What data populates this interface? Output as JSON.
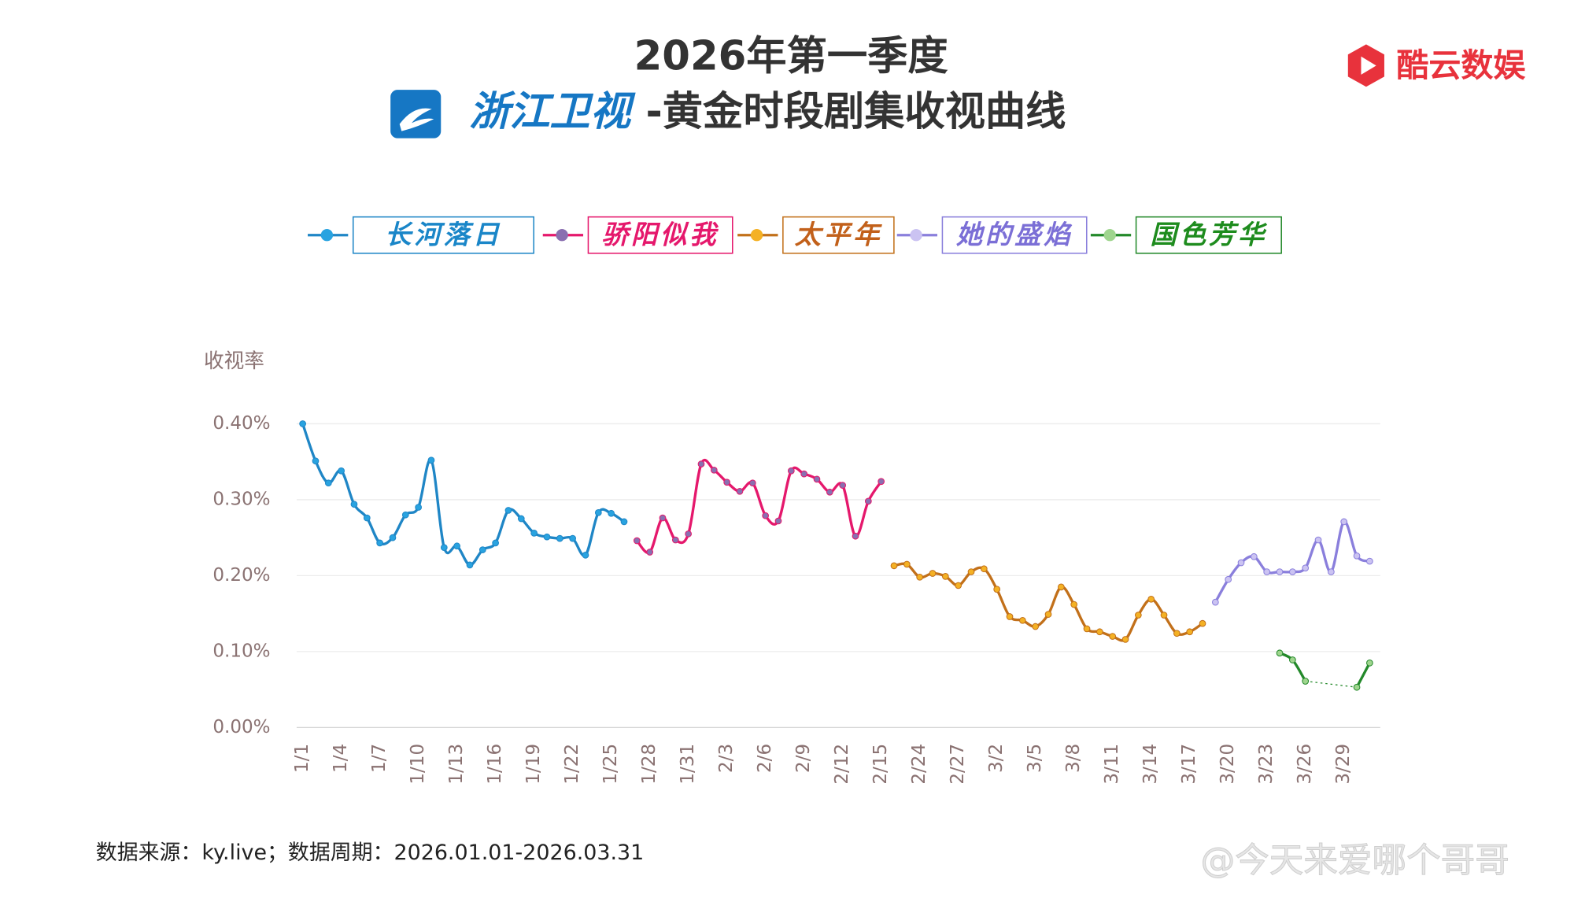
{
  "chart_data": {
    "type": "line",
    "title": "2026年第一季度",
    "channel": "浙江卫视",
    "subtitle": "-黄金时段剧集收视曲线",
    "y_label": "收视率",
    "categories": [
      "1/1",
      null,
      null,
      "1/4",
      null,
      null,
      "1/7",
      null,
      null,
      "1/10",
      null,
      null,
      "1/13",
      null,
      null,
      "1/16",
      null,
      null,
      "1/19",
      null,
      null,
      "1/22",
      null,
      null,
      "1/25",
      null,
      null,
      "1/28",
      null,
      null,
      "1/31",
      null,
      null,
      "2/3",
      null,
      null,
      "2/6",
      null,
      null,
      "2/9",
      null,
      null,
      "2/12",
      null,
      null,
      "2/15",
      null,
      null,
      "2/24",
      null,
      null,
      "2/27",
      null,
      null,
      "3/2",
      null,
      null,
      "3/5",
      null,
      null,
      "3/8",
      null,
      null,
      "3/11",
      null,
      null,
      "3/14",
      null,
      null,
      "3/17",
      null,
      null,
      "3/20",
      null,
      null,
      "3/23",
      null,
      null,
      "3/26",
      null,
      null,
      "3/29",
      null,
      null
    ],
    "ylim": [
      0,
      0.4
    ],
    "yticks": [
      {
        "value": 0,
        "label": "0.00%"
      },
      {
        "value": 0.1,
        "label": "0.10%"
      },
      {
        "value": 0.2,
        "label": "0.20%"
      },
      {
        "value": 0.3,
        "label": "0.30%"
      },
      {
        "value": 0.4,
        "label": "0.40%"
      }
    ],
    "grid": true,
    "series": [
      {
        "name": "长河落日",
        "color": "#1f86c6",
        "marker_color": "#29a3e0",
        "text_color": "#1a86c8",
        "values": [
          0.4,
          0.351,
          0.322,
          0.338,
          0.294,
          0.276,
          0.243,
          0.25,
          0.28,
          0.29,
          0.352,
          0.237,
          0.239,
          0.214,
          0.234,
          0.243,
          0.286,
          0.275,
          0.256,
          0.251,
          0.249,
          0.249,
          0.227,
          0.283,
          0.282,
          0.271,
          null,
          null,
          null,
          null,
          null,
          null,
          null,
          null,
          null,
          null,
          null,
          null,
          null,
          null,
          null,
          null,
          null,
          null,
          null,
          null,
          null,
          null,
          null,
          null,
          null,
          null,
          null,
          null,
          null,
          null,
          null,
          null,
          null,
          null,
          null,
          null,
          null,
          null,
          null,
          null,
          null,
          null,
          null,
          null,
          null,
          null,
          null,
          null,
          null,
          null,
          null,
          null,
          null,
          null,
          null,
          null,
          null,
          null
        ]
      },
      {
        "name": "骄阳似我",
        "color": "#e5186c",
        "marker_color": "#8a6fb0",
        "text_color": "#e5186c",
        "values": [
          null,
          null,
          null,
          null,
          null,
          null,
          null,
          null,
          null,
          null,
          null,
          null,
          null,
          null,
          null,
          null,
          null,
          null,
          null,
          null,
          null,
          null,
          null,
          null,
          null,
          null,
          0.246,
          0.231,
          0.276,
          0.247,
          0.255,
          0.347,
          0.339,
          0.323,
          0.311,
          0.322,
          0.279,
          0.272,
          0.338,
          0.334,
          0.327,
          0.31,
          0.319,
          0.252,
          0.298,
          0.324,
          null,
          null,
          null,
          null,
          null,
          null,
          null,
          null,
          null,
          null,
          null,
          null,
          null,
          null,
          null,
          null,
          null,
          null,
          null,
          null,
          null,
          null,
          null,
          null,
          null,
          null,
          null,
          null,
          null,
          null,
          null,
          null,
          null,
          null,
          null,
          null,
          null,
          null
        ]
      },
      {
        "name": "太平年",
        "color": "#c2701a",
        "marker_color": "#f4b124",
        "text_color": "#c2601a",
        "values": [
          null,
          null,
          null,
          null,
          null,
          null,
          null,
          null,
          null,
          null,
          null,
          null,
          null,
          null,
          null,
          null,
          null,
          null,
          null,
          null,
          null,
          null,
          null,
          null,
          null,
          null,
          null,
          null,
          null,
          null,
          null,
          null,
          null,
          null,
          null,
          null,
          null,
          null,
          null,
          null,
          null,
          null,
          null,
          null,
          null,
          null,
          0.213,
          0.215,
          0.198,
          0.203,
          0.199,
          0.187,
          0.205,
          0.209,
          0.182,
          0.146,
          0.141,
          0.133,
          0.149,
          0.185,
          0.162,
          0.13,
          0.126,
          0.12,
          0.116,
          0.148,
          0.169,
          0.148,
          0.124,
          0.126,
          0.137,
          null,
          null,
          null,
          null,
          null,
          null,
          null,
          null,
          null,
          null,
          null,
          null,
          null
        ]
      },
      {
        "name": "她的盛焰",
        "color": "#8a7fdc",
        "marker_color": "#cbc3f2",
        "text_color": "#7b6fd6",
        "values": [
          null,
          null,
          null,
          null,
          null,
          null,
          null,
          null,
          null,
          null,
          null,
          null,
          null,
          null,
          null,
          null,
          null,
          null,
          null,
          null,
          null,
          null,
          null,
          null,
          null,
          null,
          null,
          null,
          null,
          null,
          null,
          null,
          null,
          null,
          null,
          null,
          null,
          null,
          null,
          null,
          null,
          null,
          null,
          null,
          null,
          null,
          null,
          null,
          null,
          null,
          null,
          null,
          null,
          null,
          null,
          null,
          null,
          null,
          null,
          null,
          null,
          null,
          null,
          null,
          null,
          null,
          null,
          null,
          null,
          null,
          null,
          0.165,
          0.195,
          0.217,
          0.225,
          0.205,
          0.205,
          0.205,
          0.21,
          0.247,
          0.205,
          0.271,
          0.226,
          0.219
        ]
      },
      {
        "name": "国色芳华",
        "color": "#23892a",
        "marker_color": "#9fd58e",
        "text_color": "#1e8c1e",
        "connect_gaps": "dotted",
        "values": [
          null,
          null,
          null,
          null,
          null,
          null,
          null,
          null,
          null,
          null,
          null,
          null,
          null,
          null,
          null,
          null,
          null,
          null,
          null,
          null,
          null,
          null,
          null,
          null,
          null,
          null,
          null,
          null,
          null,
          null,
          null,
          null,
          null,
          null,
          null,
          null,
          null,
          null,
          null,
          null,
          null,
          null,
          null,
          null,
          null,
          null,
          null,
          null,
          null,
          null,
          null,
          null,
          null,
          null,
          null,
          null,
          null,
          null,
          null,
          null,
          null,
          null,
          null,
          null,
          null,
          null,
          null,
          null,
          null,
          null,
          null,
          null,
          null,
          null,
          null,
          null,
          0.098,
          0.089,
          0.061,
          null,
          null,
          null,
          0.053,
          0.085
        ]
      }
    ]
  },
  "brand": "酷云数娱",
  "source": "数据来源：ky.live；数据周期：2026.01.01-2026.03.31",
  "watermark": "@今天来爱哪个哥哥"
}
